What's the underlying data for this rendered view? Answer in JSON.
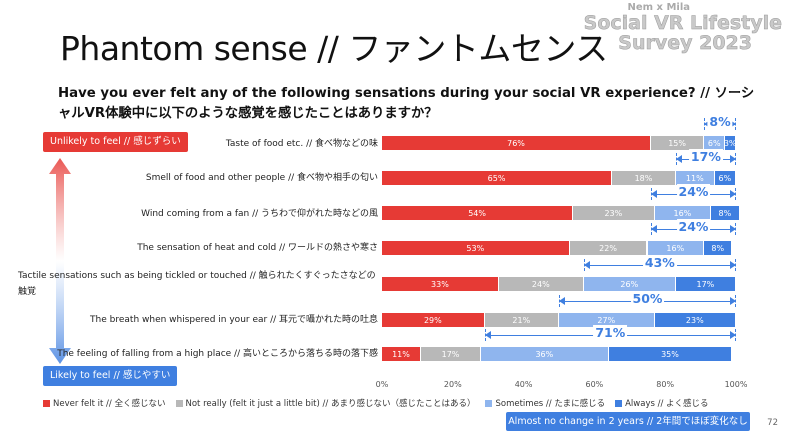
{
  "title": "Phantom sense // ファントムセンス",
  "brand": {
    "line1": "Nem x Mila",
    "line2": "Social VR Lifestyle",
    "line3": "Survey 2023"
  },
  "question": "Have you ever felt any of the following sensations during your social VR experience? // ソーシャルVR体験中に以下のような感覚を感じたことはありますか？",
  "badges": {
    "unlikely": "Unlikely to feel // 感じずらい",
    "likely": "Likely to feel // 感じやすい"
  },
  "colors": {
    "never": "#e63a35",
    "not_really": "#b8b8b8",
    "sometimes": "#8fb5ee",
    "always": "#3f7fe0",
    "accent": "#3f7fe0"
  },
  "chart_data": {
    "type": "bar",
    "orientation": "horizontal-stacked-100",
    "categories": [
      "Taste of food etc. // 食べ物などの味",
      "Smell of food and other people // 食べ物や相手の匂い",
      "Wind coming from a fan // うちわで仰がれた時などの風",
      "The sensation of heat and cold // ワールドの熱さや寒さ",
      "Tactile sensations such as being tickled or touched // 触られたくすぐったさなどの触覚",
      "The breath when whispered in your ear // 耳元で囁かれた時の吐息",
      "The feeling of falling from a high place // 高いところから落ちる時の落下感"
    ],
    "series": [
      {
        "name": "Never felt it // 全く感じない",
        "key": "never",
        "values": [
          76,
          65,
          54,
          53,
          33,
          29,
          11
        ]
      },
      {
        "name": "Not really (felt it just a little bit) // あまり感じない（感じたことはある）",
        "key": "not_really",
        "values": [
          15,
          18,
          23,
          22,
          24,
          21,
          17
        ]
      },
      {
        "name": "Sometimes // たまに感じる",
        "key": "sometimes",
        "values": [
          6,
          11,
          16,
          16,
          26,
          27,
          36
        ]
      },
      {
        "name": "Always // よく感じる",
        "key": "always",
        "values": [
          3,
          6,
          8,
          8,
          17,
          23,
          35
        ]
      }
    ],
    "combined_labels": [
      "8%",
      "17%",
      "24%",
      "24%",
      "43%",
      "50%",
      "71%"
    ],
    "xlim": [
      0,
      100
    ],
    "xticks": [
      "0%",
      "20%",
      "40%",
      "60%",
      "80%",
      "100%"
    ],
    "legend_position": "bottom"
  },
  "note": "Almost no change in 2 years // 2年間でほぼ変化なし",
  "page_number": "72"
}
